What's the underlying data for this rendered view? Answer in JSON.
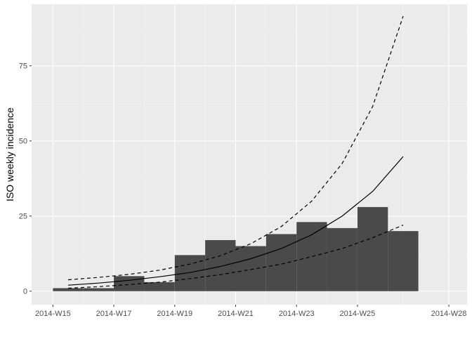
{
  "chart_data": {
    "type": "bar",
    "title": "",
    "xlabel": "",
    "ylabel": "ISO weekly incidence",
    "x_tick_labels": [
      {
        "week": 15,
        "label": "2014-W15"
      },
      {
        "week": 17,
        "label": "2014-W17"
      },
      {
        "week": 19,
        "label": "2014-W19"
      },
      {
        "week": 21,
        "label": "2014-W21"
      },
      {
        "week": 23,
        "label": "2014-W23"
      },
      {
        "week": 25,
        "label": "2014-W25"
      },
      {
        "week": 28,
        "label": "2014-W28"
      }
    ],
    "y_ticks": [
      0,
      25,
      50,
      75
    ],
    "y_tick_labels": [
      "0",
      "25",
      "50",
      "75"
    ],
    "xlim": [
      "2014-W14.3",
      "2014-W28.6"
    ],
    "ylim": [
      -4.5,
      95.5
    ],
    "grid": true,
    "bars": {
      "name": "",
      "weeks": [
        "2014-W15",
        "2014-W16",
        "2014-W17",
        "2014-W18",
        "2014-W19",
        "2014-W20",
        "2014-W21",
        "2014-W22",
        "2014-W23",
        "2014-W24",
        "2014-W25",
        "2014-W26"
      ],
      "values": [
        1,
        1,
        5,
        3,
        12,
        17,
        15,
        19,
        23,
        21,
        28,
        20
      ],
      "color": "#4a4a4a"
    },
    "lines": [
      {
        "name": "",
        "style": "solid",
        "weeks": [
          "2014-W15.5",
          "2014-W16.5",
          "2014-W17.5",
          "2014-W18.5",
          "2014-W19.5",
          "2014-W20.5",
          "2014-W21.5",
          "2014-W22.5",
          "2014-W23.5",
          "2014-W24.5",
          "2014-W25.5",
          "2014-W26.5"
        ],
        "values": [
          2.0,
          2.7,
          3.6,
          4.8,
          6.2,
          8.2,
          10.8,
          14.2,
          18.8,
          25.0,
          33.2,
          44.8
        ]
      },
      {
        "name": "",
        "style": "dashed",
        "weeks": [
          "2014-W15.5",
          "2014-W16.5",
          "2014-W17.5",
          "2014-W18.5",
          "2014-W19.5",
          "2014-W20.5",
          "2014-W21.5",
          "2014-W22.5",
          "2014-W23.5",
          "2014-W24.5",
          "2014-W25.5",
          "2014-W26.5"
        ],
        "values": [
          3.8,
          4.6,
          5.6,
          7.0,
          9.0,
          11.8,
          15.8,
          21.5,
          30.0,
          42.5,
          61.5,
          91.5
        ]
      },
      {
        "name": "",
        "style": "dashed",
        "weeks": [
          "2014-W15.5",
          "2014-W16.5",
          "2014-W17.5",
          "2014-W18.5",
          "2014-W19.5",
          "2014-W20.5",
          "2014-W21.5",
          "2014-W22.5",
          "2014-W23.5",
          "2014-W24.5",
          "2014-W25.5",
          "2014-W26.5"
        ],
        "values": [
          1.0,
          1.5,
          2.2,
          3.0,
          4.2,
          5.5,
          7.2,
          9.0,
          11.5,
          14.2,
          17.8,
          22.0
        ]
      }
    ],
    "colors": {
      "panel": "#ebebeb",
      "grid_major": "#ffffff",
      "grid_minor": "#f5f5f5",
      "line": "#000000",
      "tick_text": "#4d4d4d",
      "tick_mark": "#333333"
    }
  }
}
